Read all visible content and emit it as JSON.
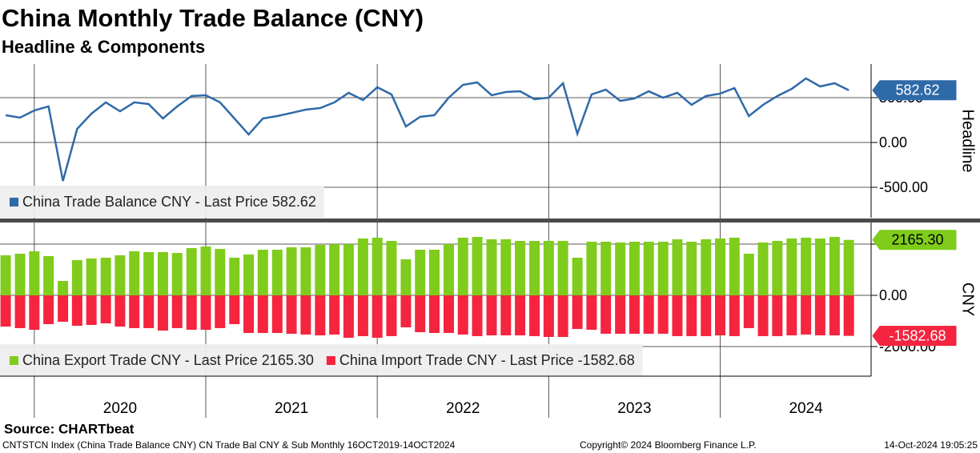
{
  "title": "China Monthly Trade Balance (CNY)",
  "subtitle": "Headline & Components",
  "chart_data": [
    {
      "type": "line",
      "axis_label": "Headline",
      "ylim": [
        -839,
        875
      ],
      "yticks": [
        {
          "value": -500,
          "label": "-500.00"
        },
        {
          "value": 0,
          "label": "0.00"
        },
        {
          "value": 500,
          "label": "500.00"
        }
      ],
      "grid": true,
      "series": [
        {
          "name": "China Trade Balance CNY - Last Price 582.62",
          "color": "#2f6aa8",
          "last_value_label": "582.62",
          "values": [
            304,
            277,
            357,
            402,
            -429,
            152,
            321,
            447,
            348,
            447,
            429,
            268,
            402,
            518,
            527,
            447,
            268,
            89,
            268,
            295,
            330,
            366,
            384,
            447,
            554,
            473,
            616,
            536,
            179,
            286,
            304,
            500,
            643,
            670,
            527,
            563,
            571,
            482,
            500,
            661,
            98,
            536,
            589,
            464,
            491,
            571,
            500,
            554,
            420,
            518,
            545,
            607,
            295,
            420,
            518,
            598,
            714,
            625,
            661,
            582.62
          ]
        }
      ]
    },
    {
      "type": "bar",
      "axis_label": "CNY",
      "x": [
        2019.833,
        2019.917,
        2020,
        2020.083,
        2020.167,
        2020.25,
        2020.333,
        2020.417,
        2020.5,
        2020.583,
        2020.667,
        2020.75,
        2020.833,
        2020.917,
        2021,
        2021.083,
        2021.167,
        2021.25,
        2021.333,
        2021.417,
        2021.5,
        2021.583,
        2021.667,
        2021.75,
        2021.833,
        2021.917,
        2022,
        2022.083,
        2022.167,
        2022.25,
        2022.333,
        2022.417,
        2022.5,
        2022.583,
        2022.667,
        2022.75,
        2022.833,
        2022.917,
        2023,
        2023.083,
        2023.167,
        2023.25,
        2023.333,
        2023.417,
        2023.5,
        2023.583,
        2023.667,
        2023.75,
        2023.833,
        2023.917,
        2024,
        2024.083,
        2024.167,
        2024.25,
        2024.333,
        2024.417,
        2024.5,
        2024.583,
        2024.667,
        2024.75
      ],
      "xlim": [
        2019.8,
        2024.88
      ],
      "xticks": [
        2020,
        2021,
        2022,
        2023,
        2024
      ],
      "ylim": [
        -3156,
        2844
      ],
      "yticks": [
        {
          "value": -2000,
          "label": "-2000.00"
        },
        {
          "value": 0,
          "label": "0.00"
        },
        {
          "value": 2000,
          "label": "2000.00"
        }
      ],
      "grid": true,
      "series": [
        {
          "name": "China Export Trade CNY - Last Price 2165.30",
          "color": "#7fcc1c",
          "last_value_label": "2165.30",
          "values": [
            1563,
            1625,
            1719,
            1531,
            563,
            1375,
            1438,
            1469,
            1563,
            1719,
            1688,
            1688,
            1656,
            1844,
            1906,
            1813,
            1469,
            1594,
            1781,
            1781,
            1875,
            1875,
            1969,
            2000,
            2000,
            2219,
            2250,
            2125,
            1406,
            1781,
            1781,
            2000,
            2250,
            2281,
            2188,
            2188,
            2125,
            2125,
            2125,
            2125,
            1469,
            2094,
            2094,
            2063,
            2094,
            2094,
            2094,
            2188,
            2094,
            2188,
            2219,
            2250,
            1625,
            2063,
            2125,
            2219,
            2250,
            2219,
            2281,
            2165.3
          ]
        },
        {
          "name": "China Import Trade CNY - Last Price -1582.68",
          "color": "#f5243f",
          "last_value_label": "-1582.68",
          "values": [
            -1219,
            -1281,
            -1344,
            -1125,
            -1031,
            -1188,
            -1156,
            -1094,
            -1219,
            -1281,
            -1281,
            -1375,
            -1281,
            -1344,
            -1344,
            -1281,
            -1125,
            -1469,
            -1469,
            -1469,
            -1500,
            -1531,
            -1563,
            -1531,
            -1656,
            -1594,
            -1656,
            -1594,
            -1250,
            -1438,
            -1469,
            -1469,
            -1531,
            -1594,
            -1563,
            -1563,
            -1563,
            -1594,
            -1625,
            -1625,
            -1313,
            -1344,
            -1500,
            -1500,
            -1500,
            -1500,
            -1500,
            -1594,
            -1594,
            -1594,
            -1563,
            -1594,
            -1281,
            -1594,
            -1594,
            -1563,
            -1531,
            -1563,
            -1563,
            -1582.68
          ]
        }
      ]
    }
  ],
  "footer": {
    "source": "Source: CHARTbeat",
    "description": "CNTSTCN Index (China Trade Balance CNY) CN Trade Bal CNY & Sub  Monthly 16OCT2019-14OCT2024",
    "copyright": "Copyright© 2024 Bloomberg Finance L.P.",
    "timestamp": "14-Oct-2024 19:05:25"
  }
}
